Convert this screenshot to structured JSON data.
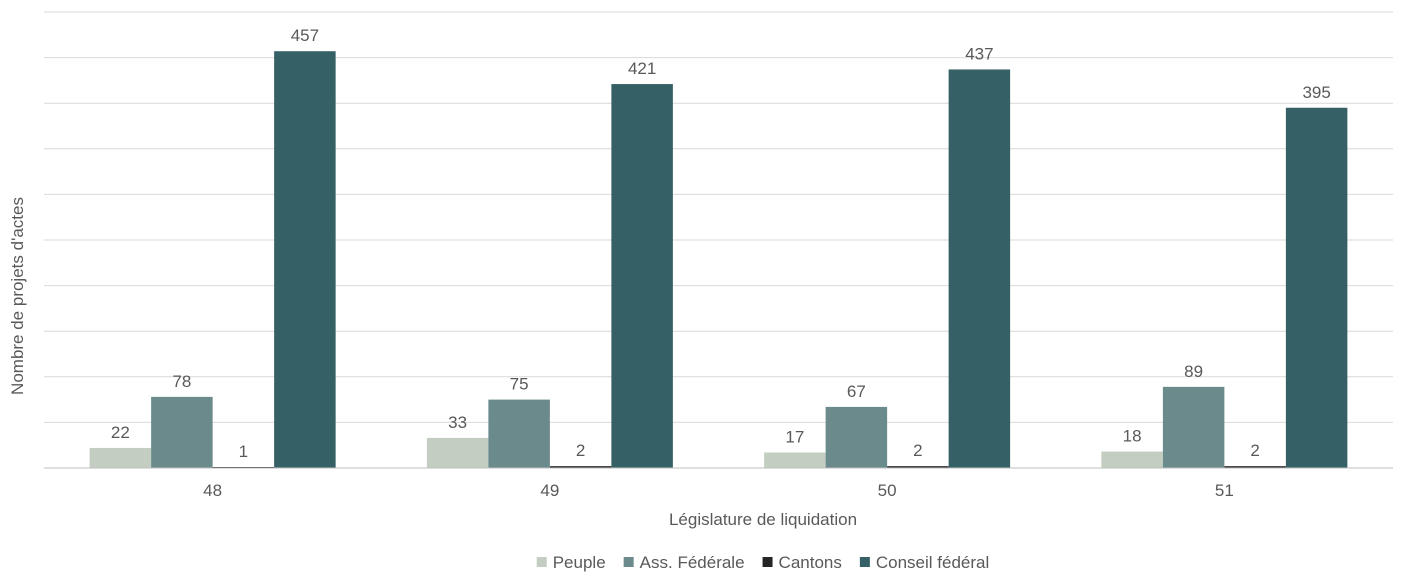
{
  "chart_data": {
    "type": "bar",
    "title": "",
    "xlabel": "Législature de liquidation",
    "ylabel": "Nombre de projets d'actes",
    "categories": [
      "48",
      "49",
      "50",
      "51"
    ],
    "series": [
      {
        "name": "Peuple",
        "color": "#c4cdc1",
        "values": [
          22,
          33,
          17,
          18
        ]
      },
      {
        "name": "Ass. Fédérale",
        "color": "#6a8a8c",
        "values": [
          78,
          75,
          67,
          89
        ]
      },
      {
        "name": "Cantons",
        "color": "#262626",
        "values": [
          1,
          2,
          2,
          2
        ]
      },
      {
        "name": "Conseil fédéral",
        "color": "#356066",
        "values": [
          457,
          421,
          437,
          395
        ]
      }
    ],
    "ylim": [
      0,
      500
    ],
    "y_tick_step": 50,
    "y_tick_labels_shown": false,
    "grid": true,
    "data_labels": true,
    "legend_position": "bottom"
  }
}
